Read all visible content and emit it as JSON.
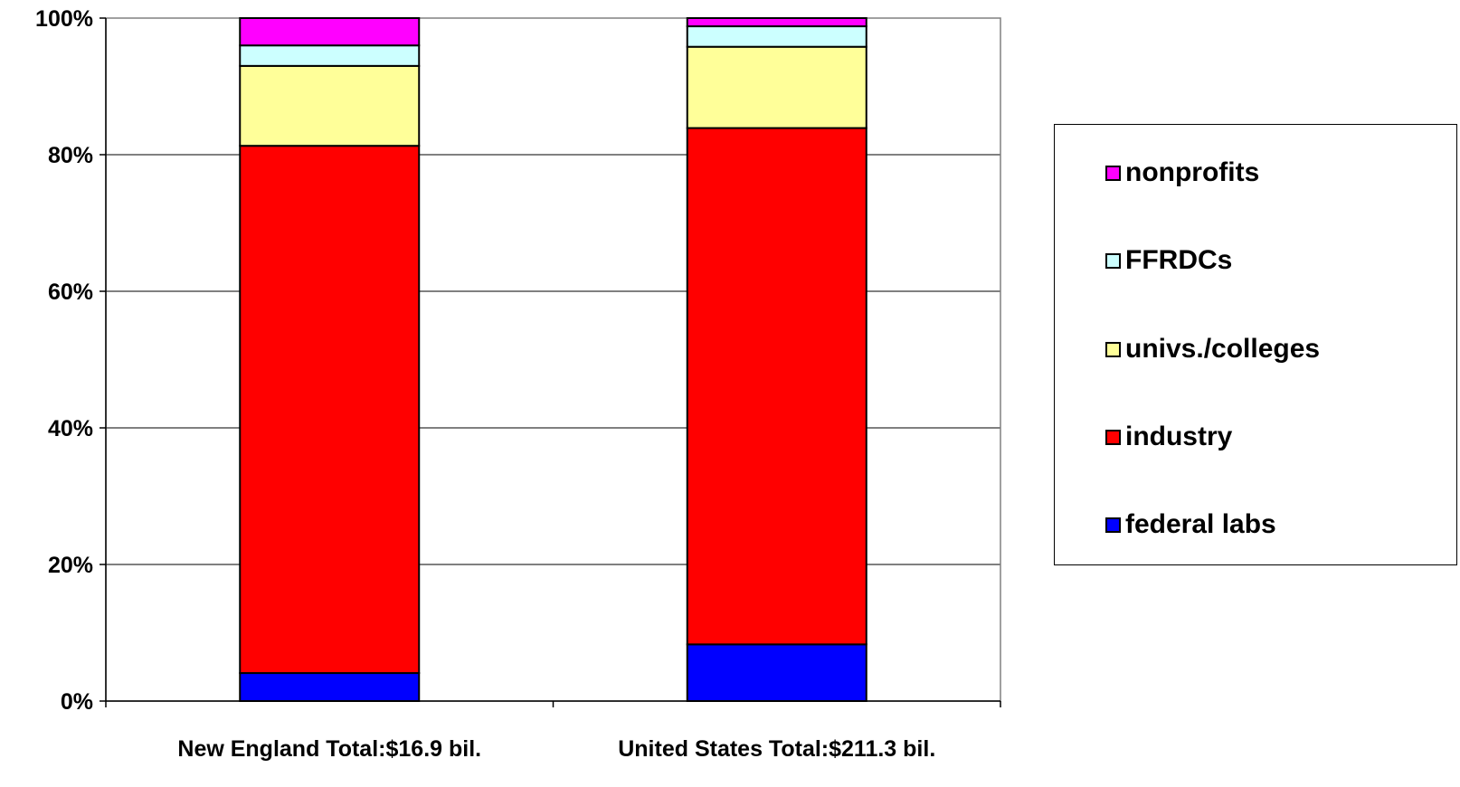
{
  "chart_data": {
    "type": "bar",
    "stacked": true,
    "percent_stacked": true,
    "title": "",
    "xlabel": "",
    "ylabel": "",
    "categories": [
      "New England Total:$16.9 bil.",
      "United States Total:$211.3 bil."
    ],
    "series": [
      {
        "name": "federal labs",
        "color": "#0000ff",
        "values": [
          4.1,
          8.3
        ]
      },
      {
        "name": "industry",
        "color": "#ff0000",
        "values": [
          77.2,
          75.6
        ]
      },
      {
        "name": "univs./colleges",
        "color": "#ffff99",
        "values": [
          11.7,
          11.9
        ]
      },
      {
        "name": "FFRDCs",
        "color": "#ccffff",
        "values": [
          3.0,
          3.0
        ]
      },
      {
        "name": "nonprofits",
        "color": "#ff00ff",
        "values": [
          4.0,
          1.2
        ]
      }
    ],
    "ylim": [
      0,
      100
    ],
    "yticks": [
      0,
      20,
      40,
      60,
      80,
      100
    ],
    "ytick_labels": [
      "0%",
      "20%",
      "40%",
      "60%",
      "80%",
      "100%"
    ],
    "grid": true,
    "legend": {
      "placement": "right",
      "order": [
        "nonprofits",
        "FFRDCs",
        "univs./colleges",
        "industry",
        "federal labs"
      ]
    }
  }
}
